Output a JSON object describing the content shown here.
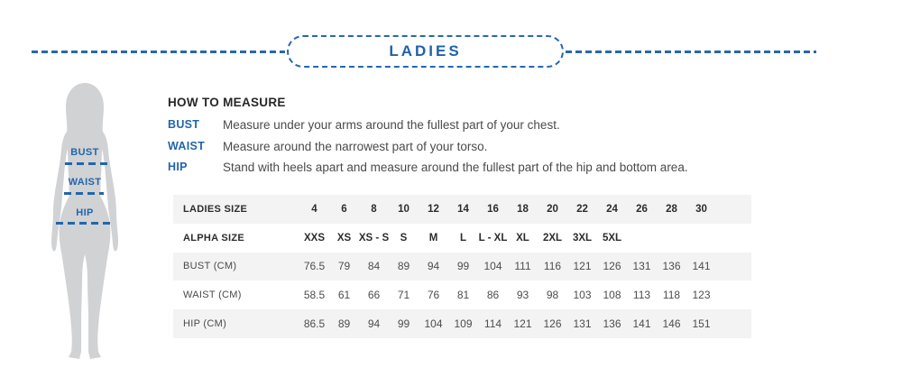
{
  "header": {
    "title": "LADIES"
  },
  "how_to_measure": {
    "title": "HOW TO MEASURE",
    "items": [
      {
        "label": "BUST",
        "text": "Measure under your arms around the fullest part of your chest."
      },
      {
        "label": "WAIST",
        "text": "Measure around the narrowest part of your torso."
      },
      {
        "label": "HIP",
        "text": "Stand with heels apart and measure around the fullest part of the hip and bottom area."
      }
    ]
  },
  "figure": {
    "labels": [
      "BUST",
      "WAIST",
      "HIP"
    ]
  },
  "colors": {
    "accent_blue": "#2062a8",
    "row_alt_gray": "#f3f3f3",
    "silhouette_gray": "#d0d2d4",
    "text_dark": "#2c2c2c",
    "text_gray": "#4a4a4a"
  },
  "chart_data": {
    "type": "table",
    "title": "LADIES",
    "rows": [
      {
        "label": "LADIES SIZE",
        "bold": true,
        "values": [
          "4",
          "6",
          "8",
          "10",
          "12",
          "14",
          "16",
          "18",
          "20",
          "22",
          "24",
          "26",
          "28",
          "30"
        ]
      },
      {
        "label": "ALPHA SIZE",
        "bold": true,
        "values": [
          "XXS",
          "XS",
          "XS - S",
          "S",
          "M",
          "L",
          "L - XL",
          "XL",
          "2XL",
          "3XL",
          "5XL",
          "",
          "",
          ""
        ]
      },
      {
        "label": "BUST (CM)",
        "bold": false,
        "values": [
          "76.5",
          "79",
          "84",
          "89",
          "94",
          "99",
          "104",
          "111",
          "116",
          "121",
          "126",
          "131",
          "136",
          "141"
        ]
      },
      {
        "label": "WAIST (CM)",
        "bold": false,
        "values": [
          "58.5",
          "61",
          "66",
          "71",
          "76",
          "81",
          "86",
          "93",
          "98",
          "103",
          "108",
          "113",
          "118",
          "123"
        ]
      },
      {
        "label": "HIP (CM)",
        "bold": false,
        "values": [
          "86.5",
          "89",
          "94",
          "99",
          "104",
          "109",
          "114",
          "121",
          "126",
          "131",
          "136",
          "141",
          "146",
          "151"
        ]
      }
    ]
  }
}
